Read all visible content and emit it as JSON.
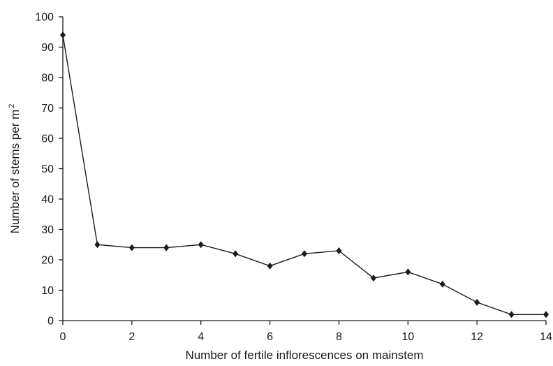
{
  "chart_data": {
    "type": "line",
    "title": "",
    "xlabel": "Number of fertile inflorescences on mainstem",
    "ylabel_main": "Number of stems per m",
    "ylabel_superscript": "2",
    "xlim": [
      0,
      14
    ],
    "ylim": [
      0,
      100
    ],
    "xticks": [
      "0",
      "2",
      "4",
      "6",
      "8",
      "10",
      "12",
      "14"
    ],
    "yticks": [
      "0",
      "10",
      "20",
      "30",
      "40",
      "50",
      "60",
      "70",
      "80",
      "90",
      "100"
    ],
    "grid": false,
    "legend": "none",
    "marker": "diamond",
    "color": "#1a1a1a",
    "series": [
      {
        "x": [
          0,
          1,
          2,
          3,
          4,
          5,
          6,
          7,
          8,
          9,
          10,
          11,
          12,
          13,
          14
        ],
        "y": [
          94,
          25,
          24,
          24,
          25,
          22,
          18,
          22,
          23,
          14,
          16,
          12,
          6,
          2,
          2
        ]
      }
    ]
  }
}
